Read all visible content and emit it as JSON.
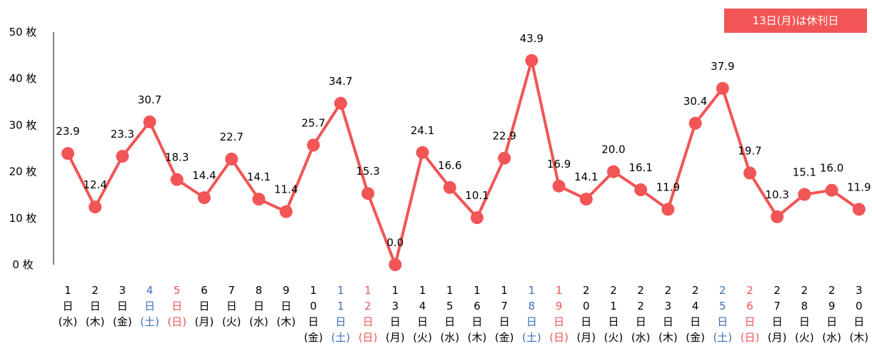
{
  "note": "13日(月)は休刊日",
  "colors": {
    "series": "#f25555",
    "weekday": "#000000",
    "saturday": "#3d6fb6",
    "sunday": "#f25555",
    "axis": "#000000"
  },
  "chart_data": {
    "type": "line",
    "title": "",
    "xlabel": "",
    "ylabel": "",
    "y_unit": "枚",
    "ylim": [
      0,
      50
    ],
    "y_ticks": [
      0,
      10,
      20,
      30,
      40,
      50
    ],
    "y_tick_labels": [
      "0 枚",
      "10 枚",
      "20 枚",
      "30 枚",
      "40 枚",
      "50 枚"
    ],
    "grid": false,
    "legend": "none",
    "categories": [
      {
        "day": "1",
        "weekday": "水",
        "kind": "weekday"
      },
      {
        "day": "2",
        "weekday": "木",
        "kind": "weekday"
      },
      {
        "day": "3",
        "weekday": "金",
        "kind": "weekday"
      },
      {
        "day": "4",
        "weekday": "土",
        "kind": "saturday"
      },
      {
        "day": "5",
        "weekday": "日",
        "kind": "sunday"
      },
      {
        "day": "6",
        "weekday": "月",
        "kind": "weekday"
      },
      {
        "day": "7",
        "weekday": "火",
        "kind": "weekday"
      },
      {
        "day": "8",
        "weekday": "水",
        "kind": "weekday"
      },
      {
        "day": "9",
        "weekday": "木",
        "kind": "weekday"
      },
      {
        "day": "10",
        "weekday": "金",
        "kind": "weekday"
      },
      {
        "day": "11",
        "weekday": "土",
        "kind": "saturday"
      },
      {
        "day": "12",
        "weekday": "日",
        "kind": "sunday"
      },
      {
        "day": "13",
        "weekday": "月",
        "kind": "weekday"
      },
      {
        "day": "14",
        "weekday": "火",
        "kind": "weekday"
      },
      {
        "day": "15",
        "weekday": "水",
        "kind": "weekday"
      },
      {
        "day": "16",
        "weekday": "木",
        "kind": "weekday"
      },
      {
        "day": "17",
        "weekday": "金",
        "kind": "weekday"
      },
      {
        "day": "18",
        "weekday": "土",
        "kind": "saturday"
      },
      {
        "day": "19",
        "weekday": "日",
        "kind": "sunday"
      },
      {
        "day": "20",
        "weekday": "月",
        "kind": "weekday"
      },
      {
        "day": "21",
        "weekday": "火",
        "kind": "weekday"
      },
      {
        "day": "22",
        "weekday": "水",
        "kind": "weekday"
      },
      {
        "day": "23",
        "weekday": "木",
        "kind": "weekday"
      },
      {
        "day": "24",
        "weekday": "金",
        "kind": "weekday"
      },
      {
        "day": "25",
        "weekday": "土",
        "kind": "saturday"
      },
      {
        "day": "26",
        "weekday": "日",
        "kind": "sunday"
      },
      {
        "day": "27",
        "weekday": "月",
        "kind": "weekday"
      },
      {
        "day": "28",
        "weekday": "火",
        "kind": "weekday"
      },
      {
        "day": "29",
        "weekday": "水",
        "kind": "weekday"
      },
      {
        "day": "30",
        "weekday": "木",
        "kind": "weekday"
      }
    ],
    "series": [
      {
        "values": [
          23.9,
          12.4,
          23.3,
          30.7,
          18.3,
          14.4,
          22.7,
          14.1,
          11.4,
          25.7,
          34.7,
          15.3,
          0.0,
          24.1,
          16.6,
          10.1,
          22.9,
          43.9,
          16.9,
          14.1,
          20.0,
          16.1,
          11.9,
          30.4,
          37.9,
          19.7,
          10.3,
          15.1,
          16.0,
          11.9
        ],
        "labels": [
          "23.9",
          "12.4",
          "23.3",
          "30.7",
          "18.3",
          "14.4",
          "22.7",
          "14.1",
          "11.4",
          "25.7",
          "34.7",
          "15.3",
          "0.0",
          "24.1",
          "16.6",
          "10.1",
          "22.9",
          "43.9",
          "16.9",
          "14.1",
          "20.0",
          "16.1",
          "11.9",
          "30.4",
          "37.9",
          "19.7",
          "10.3",
          "15.1",
          "16.0",
          "11.9"
        ]
      }
    ]
  }
}
